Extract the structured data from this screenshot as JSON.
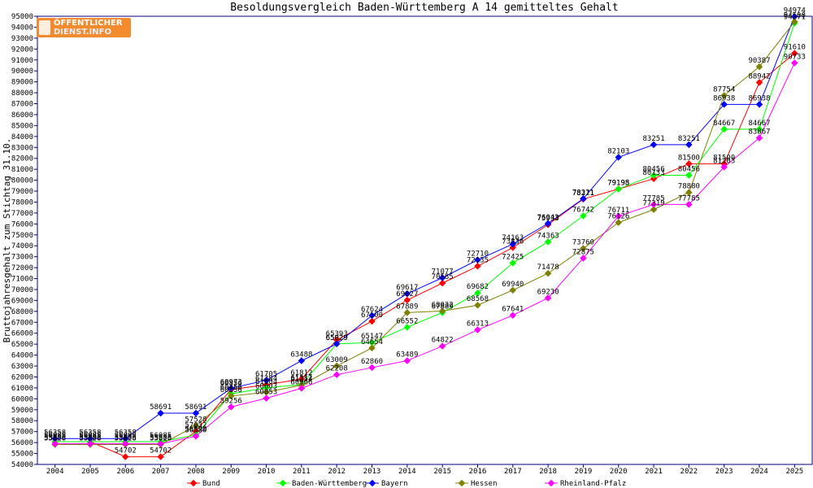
{
  "logo": {
    "line1": "ÖFFENTLICHER",
    "line2": "DIENST.INFO"
  },
  "chart_data": {
    "type": "line",
    "title": "Besoldungsvergleich Baden-Württemberg A 14 gemitteltes Gehalt",
    "xlabel": "",
    "ylabel": "Bruttojahresgehalt zum Stichtag 31.10.",
    "ylim": [
      54000,
      95000
    ],
    "ytick_step": 1000,
    "grid": false,
    "legend_position": "bottom",
    "categories": [
      "2004",
      "2005",
      "2006",
      "2007",
      "2008",
      "2009",
      "2010",
      "2011",
      "2012",
      "2013",
      "2014",
      "2015",
      "2016",
      "2017",
      "2018",
      "2019",
      "2020",
      "2021",
      "2022",
      "2023",
      "2024",
      "2025"
    ],
    "series": [
      {
        "name": "Bund",
        "color": "#ff0000",
        "values": [
          56085,
          56085,
          54702,
          54702,
          57032,
          60856,
          61284,
          61812,
          65393,
          67100,
          69027,
          70585,
          72135,
          73836,
          75933,
          78271,
          79195,
          80133,
          81500,
          81500,
          88942,
          91610
        ]
      },
      {
        "name": "Baden-Württemberg",
        "color": "#00ff00",
        "values": [
          56085,
          56085,
          56085,
          56085,
          56690,
          60456,
          61004,
          61312,
          65029,
          65147,
          66552,
          67889,
          69682,
          72425,
          74363,
          76742,
          79198,
          80456,
          80456,
          84667,
          84667,
          94371
        ]
      },
      {
        "name": "Bayern",
        "color": "#0000ff",
        "values": [
          56358,
          56358,
          56358,
          58691,
          58691,
          60973,
          61705,
          63488,
          65029,
          67624,
          69617,
          71077,
          72710,
          74163,
          76043,
          78311,
          82103,
          83251,
          83251,
          86938,
          86938,
          94974
        ]
      },
      {
        "name": "Hessen",
        "color": "#808000",
        "values": [
          55826,
          55826,
          55826,
          55826,
          57528,
          60256,
          60603,
          61254,
          63009,
          64654,
          67889,
          68032,
          68568,
          69940,
          71478,
          73760,
          76126,
          77319,
          78880,
          87754,
          90387,
          94500
        ]
      },
      {
        "name": "Rheinland-Pfalz",
        "color": "#ff00ff",
        "values": [
          55885,
          55885,
          55885,
          55885,
          56580,
          59256,
          60053,
          60966,
          62208,
          62860,
          63489,
          64822,
          66313,
          67641,
          69230,
          72875,
          76711,
          77785,
          77785,
          81203,
          83867,
          90733
        ]
      }
    ],
    "point_labels": {
      "Bund": [
        "56085",
        "56085",
        "54702",
        "54702",
        "57032",
        "60856",
        "61284",
        "61812",
        "65393",
        "67100",
        "69027",
        "70585",
        "72135",
        "73836",
        "75933",
        "78271",
        "79195",
        "80133",
        "81500",
        "81500",
        "88942",
        "91610"
      ],
      "Baden-Württemberg": [
        "56085",
        "56085",
        "56085",
        "56085",
        "56690",
        "60456",
        "61004",
        "61312",
        "65029",
        "65147",
        "66552",
        "67889",
        "69682",
        "72425",
        "74363",
        "76742",
        "79198",
        "80456",
        "80456",
        "84667",
        "84667",
        "94371"
      ],
      "Bayern": [
        "56358",
        "56358",
        "56358",
        "58691",
        "58691",
        "60973",
        "61705",
        "63488",
        "65029",
        "67624",
        "69617",
        "71077",
        "72710",
        "74163",
        "76043",
        "78311",
        "82103",
        "83251",
        "83251",
        "86938",
        "86938",
        "94974"
      ],
      "Hessen": [
        "55826",
        "55826",
        "55826",
        "55826",
        "57528",
        "60256",
        "60603",
        "61254",
        "63009",
        "64654",
        "67889",
        "68032",
        "68568",
        "69940",
        "71478",
        "73760",
        "76126",
        "77319",
        "78880",
        "87754",
        "90387",
        "94500"
      ],
      "Rheinland-Pfalz": [
        "55885",
        "55885",
        "55885",
        "55885",
        "56580",
        "59256",
        "60053",
        "60966",
        "62208",
        "62860",
        "63489",
        "64822",
        "66313",
        "67641",
        "69230",
        "72875",
        "76711",
        "77785",
        "77785",
        "81203",
        "83867",
        "90733"
      ]
    }
  }
}
